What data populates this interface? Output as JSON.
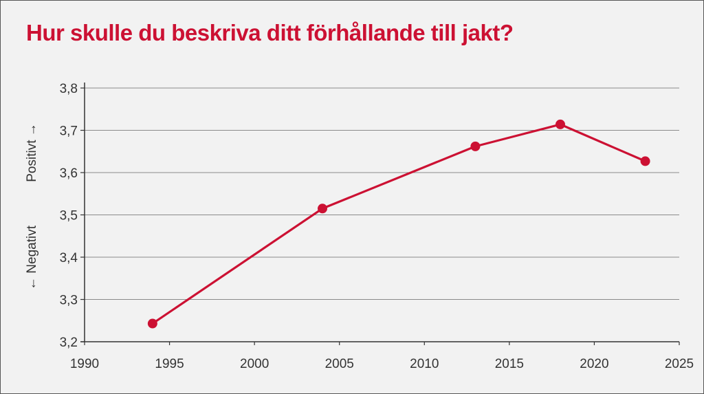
{
  "chart_data": {
    "type": "line",
    "title": "Hur skulle du beskriva ditt förhållande till jakt?",
    "y_label_positive": "Positivt →",
    "y_label_negative": "← Negativt",
    "xlim": [
      1990,
      2025
    ],
    "ylim": [
      3.2,
      3.8
    ],
    "x_ticks": [
      1990,
      1995,
      2000,
      2005,
      2010,
      2015,
      2020,
      2025
    ],
    "y_ticks": [
      "3,2",
      "3,3",
      "3,4",
      "3,5",
      "3,6",
      "3,7",
      "3,8"
    ],
    "y_tick_values": [
      3.2,
      3.3,
      3.4,
      3.5,
      3.6,
      3.7,
      3.8
    ],
    "grid": true,
    "series": [
      {
        "color": "#cc1133",
        "x": [
          1994,
          2004,
          2013,
          2018,
          2023
        ],
        "y": [
          3.243,
          3.515,
          3.662,
          3.714,
          3.627
        ]
      }
    ]
  }
}
